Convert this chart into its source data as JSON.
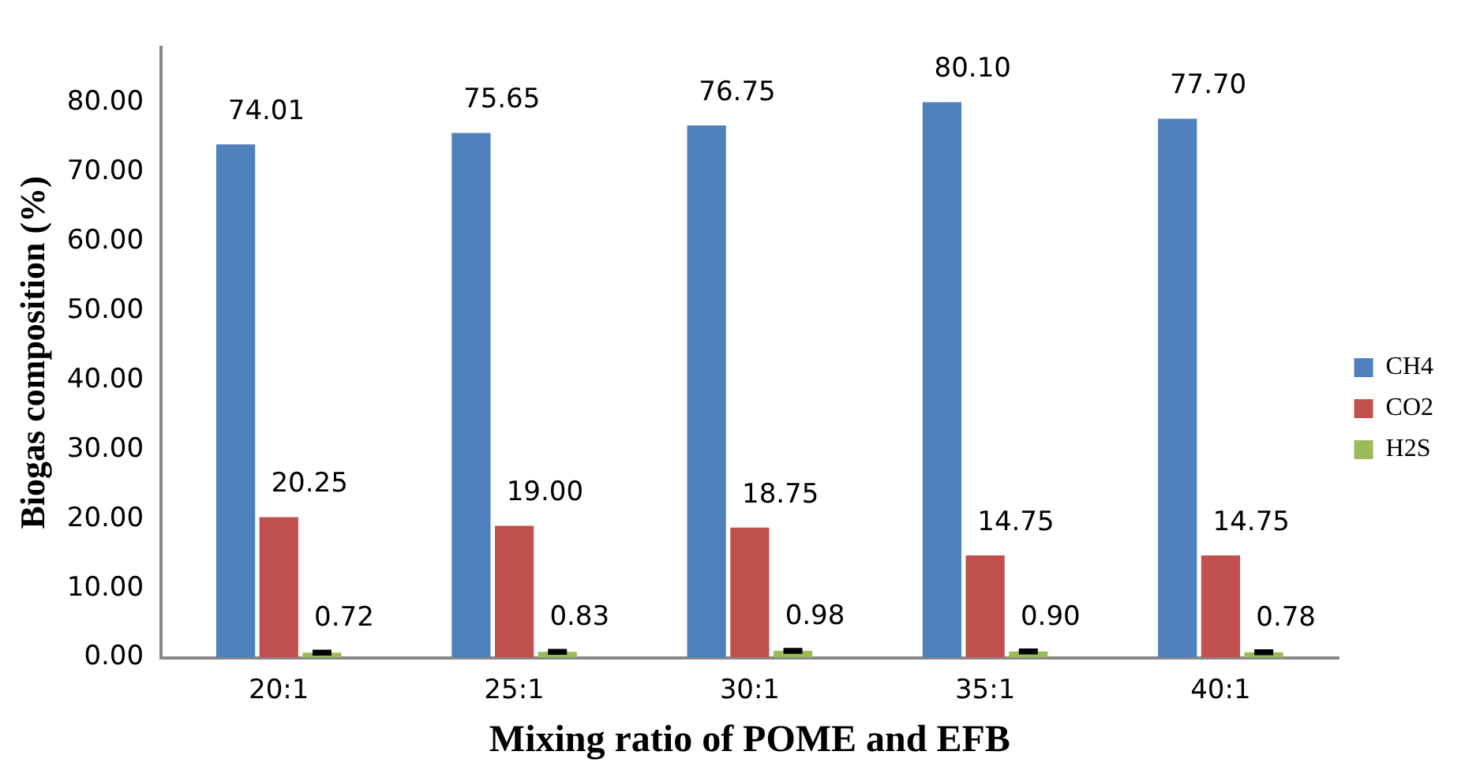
{
  "chart_data": {
    "type": "bar",
    "xlabel": "Mixing ratio of POME and EFB",
    "ylabel": "Biogas composition (%)",
    "categories": [
      "20:1",
      "25:1",
      "30:1",
      "35:1",
      "40:1"
    ],
    "series": [
      {
        "name": "CH4",
        "color": "#4f81bd",
        "values": [
          74.01,
          75.65,
          76.75,
          80.1,
          77.7
        ],
        "value_labels": [
          "74.01",
          "75.65",
          "76.75",
          "80.10",
          "77.70"
        ]
      },
      {
        "name": "CO2",
        "color": "#c0504d",
        "values": [
          20.25,
          19.0,
          18.75,
          14.75,
          14.75
        ],
        "value_labels": [
          "20.25",
          "19.00",
          "18.75",
          "14.75",
          "14.75"
        ]
      },
      {
        "name": "H2S",
        "color": "#9bbb59",
        "values": [
          0.72,
          0.83,
          0.98,
          0.9,
          0.78
        ],
        "value_labels": [
          "0.72",
          "0.83",
          "0.98",
          "0.90",
          "0.78"
        ],
        "errors": [
          0.2,
          0.2,
          0.2,
          0.2,
          0.2
        ]
      }
    ],
    "ylim": [
      0,
      88
    ],
    "yticks": [
      {
        "value": 0,
        "label": "0.00"
      },
      {
        "value": 10,
        "label": "10.00"
      },
      {
        "value": 20,
        "label": "20.00"
      },
      {
        "value": 30,
        "label": "30.00"
      },
      {
        "value": 40,
        "label": "40.00"
      },
      {
        "value": 50,
        "label": "50.00"
      },
      {
        "value": 60,
        "label": "60.00"
      },
      {
        "value": 70,
        "label": "70.00"
      },
      {
        "value": 80,
        "label": "80.00"
      }
    ],
    "grid": false,
    "legend": "right"
  }
}
